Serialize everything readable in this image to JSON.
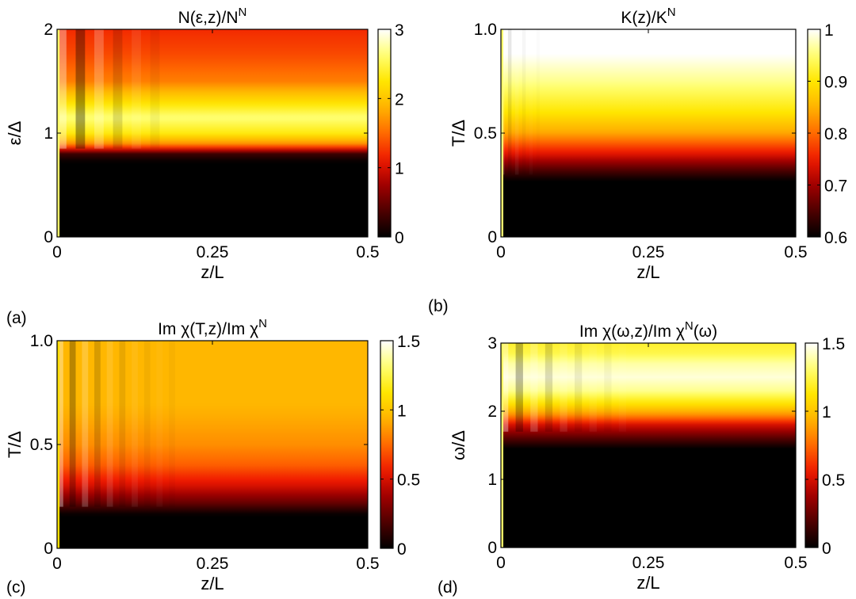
{
  "colors": {
    "colormap": [
      "#000000",
      "#4d0000",
      "#a00000",
      "#f01a00",
      "#ff6a00",
      "#ffb400",
      "#ffe600",
      "#ffff70",
      "#ffffff"
    ],
    "axis": "#000000",
    "background": "#ffffff"
  },
  "chart_data": [
    {
      "type": "heatmap",
      "panel_label": "(a)",
      "title": "N(ε,z)/N",
      "title_sup": "N",
      "xlabel": "z/L",
      "ylabel": "ε/Δ",
      "xlim": [
        0,
        0.5
      ],
      "ylim": [
        0,
        2
      ],
      "xticks": [
        0,
        0.25,
        0.5
      ],
      "xtick_labels": [
        "0",
        "0.25",
        "0.5"
      ],
      "yticks": [
        0,
        1,
        2
      ],
      "ytick_labels": [
        "0",
        "1",
        "2"
      ],
      "clim": [
        0,
        3
      ],
      "cticks": [
        0,
        1,
        2,
        3
      ],
      "ctick_labels": [
        "0",
        "1",
        "2",
        "3"
      ],
      "profile_axis": "y",
      "profile": [
        [
          0,
          0
        ],
        [
          0.72,
          0
        ],
        [
          0.8,
          0.3
        ],
        [
          0.85,
          1.1
        ],
        [
          0.9,
          1.7
        ],
        [
          1.0,
          2.3
        ],
        [
          1.15,
          2.65
        ],
        [
          1.3,
          2.2
        ],
        [
          1.5,
          1.6
        ],
        [
          1.75,
          1.35
        ],
        [
          2.0,
          1.2
        ]
      ],
      "edge": {
        "width": 0.004,
        "value": 2.6
      },
      "ripple": {
        "amp": 0.1,
        "period": 0.03,
        "decay": 0.06,
        "from": 0.85
      }
    },
    {
      "type": "heatmap",
      "panel_label": "(b)",
      "title": "K(z)/K",
      "title_sup": "N",
      "xlabel": "z/L",
      "ylabel": "T/Δ",
      "xlim": [
        0,
        0.5
      ],
      "ylim": [
        0,
        1
      ],
      "xticks": [
        0,
        0.25,
        0.5
      ],
      "xtick_labels": [
        "0",
        "0.25",
        "0.5"
      ],
      "yticks": [
        0,
        0.5,
        1
      ],
      "ytick_labels": [
        "0",
        "0.5",
        "1.0"
      ],
      "clim": [
        0.6,
        1
      ],
      "cticks": [
        0.6,
        0.7,
        0.8,
        0.9,
        1
      ],
      "ctick_labels": [
        "0.6",
        "0.7",
        "0.8",
        "0.9",
        "1"
      ],
      "profile_axis": "y",
      "profile": [
        [
          0,
          0.6
        ],
        [
          0.27,
          0.6
        ],
        [
          0.33,
          0.66
        ],
        [
          0.4,
          0.74
        ],
        [
          0.5,
          0.84
        ],
        [
          0.6,
          0.9
        ],
        [
          0.75,
          0.96
        ],
        [
          0.88,
          1.0
        ],
        [
          1.0,
          1.0
        ]
      ],
      "edge": {
        "width": 0.004,
        "value": 0.95
      },
      "ripple": {
        "amp": 0.025,
        "period": 0.012,
        "decay": 0.025,
        "from": 0.3
      }
    },
    {
      "type": "heatmap",
      "panel_label": "(c)",
      "title": "Im χ(T,z)/Im χ",
      "title_sup": "N",
      "xlabel": "z/L",
      "ylabel": "T/Δ",
      "xlim": [
        0,
        0.5
      ],
      "ylim": [
        0,
        1
      ],
      "xticks": [
        0,
        0.25,
        0.5
      ],
      "xtick_labels": [
        "0",
        "0.25",
        "0.5"
      ],
      "yticks": [
        0,
        0.5,
        1
      ],
      "ytick_labels": [
        "0",
        "0.5",
        "1.0"
      ],
      "clim": [
        0,
        1.5
      ],
      "cticks": [
        0,
        0.5,
        1,
        1.5
      ],
      "ctick_labels": [
        "0",
        "0.5",
        "1",
        "1.5"
      ],
      "profile_axis": "y",
      "profile": [
        [
          0,
          0
        ],
        [
          0.16,
          0
        ],
        [
          0.22,
          0.25
        ],
        [
          0.3,
          0.5
        ],
        [
          0.4,
          0.72
        ],
        [
          0.5,
          0.84
        ],
        [
          0.6,
          0.9
        ],
        [
          0.7,
          0.95
        ],
        [
          1.0,
          0.95
        ]
      ],
      "edge": {
        "width": 0.004,
        "value": 1.1
      },
      "ripple": {
        "amp": 0.06,
        "period": 0.02,
        "decay": 0.07,
        "from": 0.2
      }
    },
    {
      "type": "heatmap",
      "panel_label": "(d)",
      "title": "Im χ(ω,z)/Im χ",
      "title_sup": "N",
      "title_tail": "(ω)",
      "xlabel": "z/L",
      "ylabel": "ω/Δ",
      "xlim": [
        0,
        0.5
      ],
      "ylim": [
        0,
        3
      ],
      "xticks": [
        0,
        0.25,
        0.5
      ],
      "xtick_labels": [
        "0",
        "0.25",
        "0.5"
      ],
      "yticks": [
        0,
        1,
        2,
        3
      ],
      "ytick_labels": [
        "0",
        "1",
        "2",
        "3"
      ],
      "clim": [
        0,
        1.5
      ],
      "cticks": [
        0,
        0.5,
        1,
        1.5
      ],
      "ctick_labels": [
        "0",
        "0.5",
        "1",
        "1.5"
      ],
      "profile_axis": "y",
      "profile": [
        [
          0,
          0
        ],
        [
          1.45,
          0
        ],
        [
          1.6,
          0.2
        ],
        [
          1.8,
          0.5
        ],
        [
          1.95,
          0.85
        ],
        [
          2.1,
          1.1
        ],
        [
          2.3,
          1.35
        ],
        [
          2.5,
          1.45
        ],
        [
          2.7,
          1.38
        ],
        [
          2.85,
          1.25
        ],
        [
          3.0,
          1.2
        ]
      ],
      "edge": {
        "width": 0.004,
        "value": 1.3
      },
      "ripple": {
        "amp": 0.06,
        "period": 0.025,
        "decay": 0.08,
        "from": 1.7
      }
    }
  ]
}
